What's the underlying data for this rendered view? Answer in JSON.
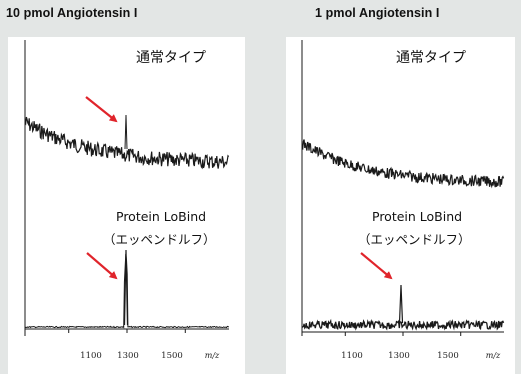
{
  "panels": [
    {
      "title": "10 pmol Angiotensin I"
    },
    {
      "title": "1 pmol Angiotensin I"
    }
  ],
  "chart_data": [
    {
      "type": "line",
      "title": "10 pmol Angiotensin I",
      "xlabel": "m/z",
      "x_ticks": [
        "1100",
        "1300",
        "1500"
      ],
      "xlim": [
        950,
        1650
      ],
      "series": [
        {
          "name": "通常タイプ",
          "peak_x": 1296,
          "baseline": "high, noisy, decaying",
          "peak_height_above_baseline": 0.25
        },
        {
          "name": "Protein LoBind\n（エッペンドルフ）",
          "peak_x": 1296,
          "baseline": "low, flat",
          "peak_height_above_baseline": 0.95
        }
      ],
      "annotations": [
        "arrow to peak",
        "arrow to peak"
      ]
    },
    {
      "type": "line",
      "title": "1 pmol Angiotensin I",
      "xlabel": "m/z",
      "x_ticks": [
        "1100",
        "1300",
        "1500"
      ],
      "xlim": [
        950,
        1650
      ],
      "series": [
        {
          "name": "通常タイプ",
          "peak_x": null,
          "baseline": "high, noisy, decaying",
          "peak_height_above_baseline": 0
        },
        {
          "name": "Protein LoBind\n（エッペンドルフ）",
          "peak_x": 1296,
          "baseline": "low, noisy",
          "peak_height_above_baseline": 0.45
        }
      ],
      "annotations": [
        "arrow to peak"
      ]
    }
  ],
  "labels": {
    "normal_type": "通常タイプ",
    "lobind_line1": "Protein LoBind",
    "lobind_line2": "（エッペンドルフ）",
    "unit": "m/z",
    "tick_1100": "1100",
    "tick_1300": "1300",
    "tick_1500": "1500"
  },
  "colors": {
    "background": "#e3e6e5",
    "plot_background": "#ffffff",
    "trace": "#1a1a1a",
    "arrow": "#e0242b"
  }
}
